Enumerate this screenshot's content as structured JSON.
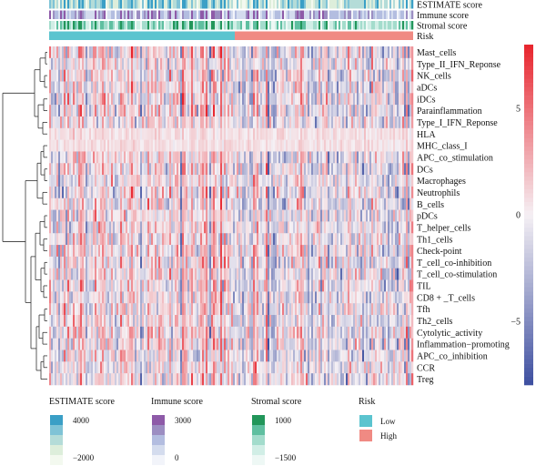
{
  "chart_data": {
    "type": "heatmap",
    "annotation_tracks": [
      "ESTIMATE score",
      "Immune score",
      "Stromal score",
      "Risk"
    ],
    "rows": [
      "Mast_cells",
      "Type_II_IFN_Reponse",
      "NK_cells",
      "aDCs",
      "iDCs",
      "Parainflammation",
      "Type_I_IFN_Reponse",
      "HLA",
      "MHC_class_I",
      "APC_co_stimulation",
      "DCs",
      "Macrophages",
      "Neutrophils",
      "B_cells",
      "pDCs",
      "T_helper_cells",
      "Th1_cells",
      "Check-point",
      "T_cell_co-inhibition",
      "T_cell_co-stimulation",
      "TIL",
      "CD8 + _T_cells",
      "Tfh",
      "Th2_cells",
      "Cytolytic_activity",
      "Inflammation−promoting",
      "APC_co_inhibition",
      "CCR",
      "Treg"
    ],
    "n_samples": 200,
    "risk_split_fraction": 0.51,
    "colorbar": {
      "min": -8,
      "max": 8,
      "ticks": [
        "5",
        "0",
        "−5"
      ],
      "tick_values": [
        5,
        0,
        -5
      ],
      "low_color": "#3d4fa0",
      "mid_color": "#f5f0f4",
      "high_color": "#e8242c"
    },
    "legends": [
      {
        "title": "ESTIMATE score",
        "high": "4000",
        "low": "−2000",
        "colors": [
          "#3a9fc6",
          "#7fc3d6",
          "#b4dcd8",
          "#ddeedb",
          "#f3f9ef"
        ]
      },
      {
        "title": "Immune score",
        "high": "3000",
        "low": "0",
        "colors": [
          "#8e5aa8",
          "#9c8ec2",
          "#b3bde0",
          "#d4dcee",
          "#f2f4fa"
        ]
      },
      {
        "title": "Stromal score",
        "high": "1000",
        "low": "−1500",
        "colors": [
          "#22965a",
          "#5fbfa0",
          "#a3dccc",
          "#d1eee6",
          "#eef8f5"
        ]
      },
      {
        "title": "Risk",
        "items": [
          {
            "label": "Low",
            "color": "#5bc4cf"
          },
          {
            "label": "High",
            "color": "#f08a83"
          }
        ]
      }
    ]
  }
}
